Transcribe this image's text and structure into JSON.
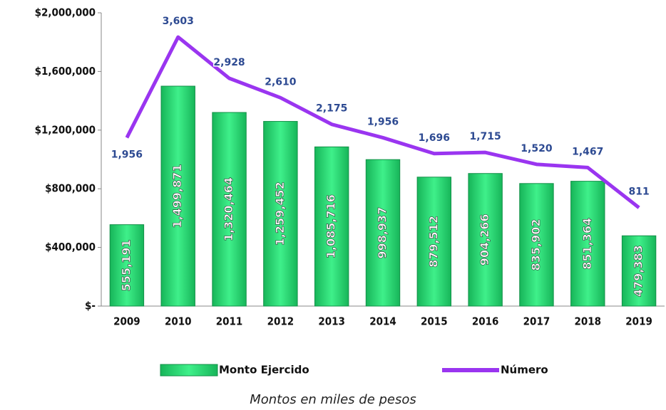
{
  "chart_data": {
    "type": "bar_line",
    "categories": [
      "2009",
      "2010",
      "2011",
      "2012",
      "2013",
      "2014",
      "2015",
      "2016",
      "2017",
      "2018",
      "2019"
    ],
    "series": [
      {
        "name": "Monto Ejercido",
        "type": "bar",
        "color": "#2fdc74",
        "values": [
          555191,
          1499871,
          1320464,
          1259452,
          1085716,
          998937,
          879512,
          904266,
          835902,
          851364,
          479383
        ],
        "value_labels": [
          "555,191",
          "1,499,871",
          "1,320,464",
          "1,259,452",
          "1,085,716",
          "998,937",
          "879,512",
          "904,266",
          "835,902",
          "851,364",
          "479,383"
        ]
      },
      {
        "name": "Número",
        "type": "line",
        "axis": "y2",
        "color": "#9a35f0",
        "values": [
          1956,
          3603,
          2928,
          2610,
          2175,
          1956,
          1696,
          1715,
          1520,
          1467,
          811
        ],
        "value_labels": [
          "1,956",
          "3,603",
          "2,928",
          "2,610",
          "2,175",
          "1,956",
          "1,696",
          "1,715",
          "1,520",
          "1,467",
          "811"
        ]
      }
    ],
    "ylim": [
      0,
      2000000
    ],
    "yticks": [
      {
        "value": 0,
        "label": "$-"
      },
      {
        "value": 400000,
        "label": "$400,000"
      },
      {
        "value": 800000,
        "label": "$800,000"
      },
      {
        "value": 1200000,
        "label": "$1,200,000"
      },
      {
        "value": 1600000,
        "label": "$1,600,000"
      },
      {
        "value": 2000000,
        "label": "$2,000,000"
      }
    ],
    "y2lim": [
      -800,
      4000
    ],
    "caption": "Montos en miles de pesos"
  }
}
